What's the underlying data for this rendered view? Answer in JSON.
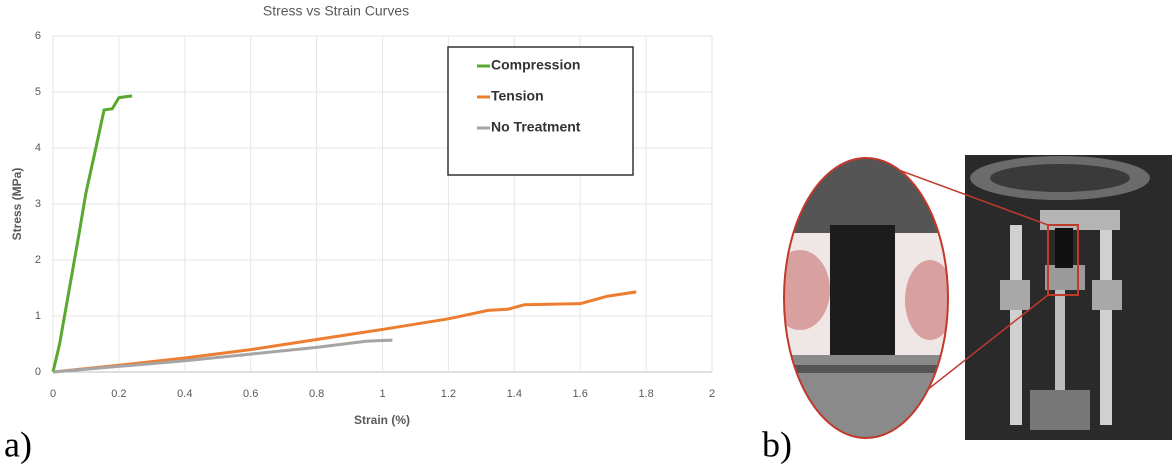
{
  "chart_data": {
    "type": "line",
    "title": "Stress vs Strain Curves",
    "x_label": "Strain (%)",
    "y_label": "Stress (MPa)",
    "xlim": [
      0,
      2
    ],
    "xticks": [
      0,
      0.2,
      0.4,
      0.6,
      0.8,
      1,
      1.2,
      1.4,
      1.6,
      1.8,
      2
    ],
    "ylim": [
      0,
      6
    ],
    "yticks": [
      0,
      1,
      2,
      3,
      4,
      5,
      6
    ],
    "grid": true,
    "series": [
      {
        "name": "Compression",
        "color": "#5aa832",
        "x": [
          0,
          0.02,
          0.05,
          0.08,
          0.1,
          0.13,
          0.155,
          0.18,
          0.2,
          0.24
        ],
        "values": [
          0,
          0.5,
          1.5,
          2.5,
          3.2,
          4.0,
          4.68,
          4.7,
          4.9,
          4.93
        ]
      },
      {
        "name": "Tension",
        "color": "#ed7d31",
        "x": [
          0,
          0.2,
          0.4,
          0.6,
          0.8,
          1.0,
          1.2,
          1.32,
          1.38,
          1.43,
          1.6,
          1.68,
          1.77
        ],
        "values": [
          0,
          0.12,
          0.25,
          0.4,
          0.58,
          0.76,
          0.95,
          1.1,
          1.12,
          1.2,
          1.22,
          1.35,
          1.43
        ]
      },
      {
        "name": "No Treatment",
        "color": "#a5a5a5",
        "x": [
          0,
          0.2,
          0.4,
          0.6,
          0.8,
          0.95,
          1.03
        ],
        "values": [
          0,
          0.1,
          0.2,
          0.32,
          0.44,
          0.55,
          0.57
        ]
      }
    ]
  },
  "panel_labels": [
    "a)",
    "b)"
  ]
}
